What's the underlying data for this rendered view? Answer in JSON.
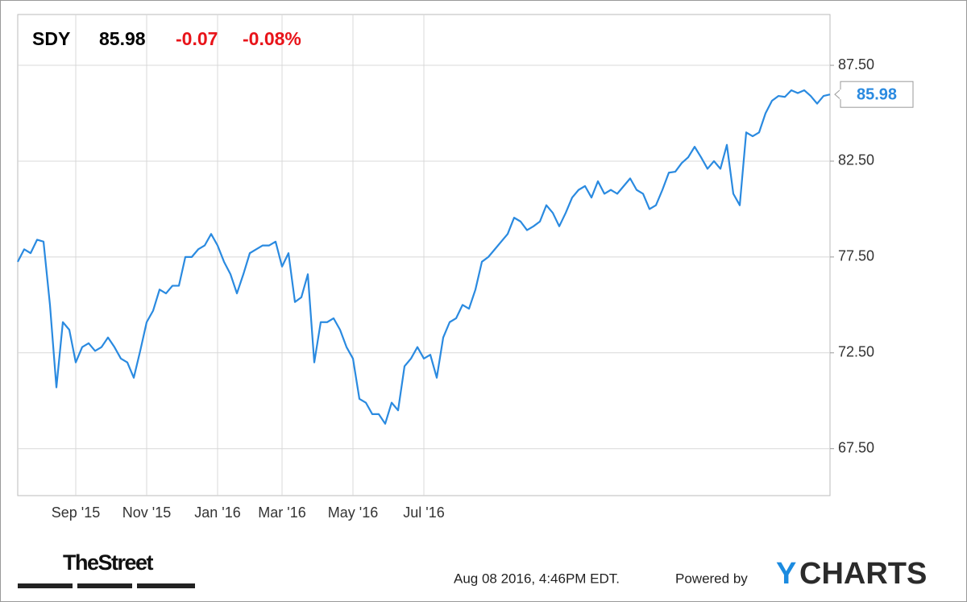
{
  "header": {
    "ticker": "SDY",
    "price": 85.98,
    "change": -0.07,
    "change_pct": "-0.08%"
  },
  "chart_data": {
    "type": "line",
    "color": "#2a8ae0",
    "categories": [
      null,
      null,
      null,
      null,
      null,
      null,
      null,
      null,
      null,
      "Sep '15",
      null,
      null,
      null,
      null,
      null,
      null,
      null,
      null,
      null,
      null,
      "Nov '15",
      null,
      null,
      null,
      null,
      null,
      null,
      null,
      null,
      null,
      null,
      "Jan '16",
      null,
      null,
      null,
      null,
      null,
      null,
      null,
      null,
      null,
      "Mar '16",
      null,
      null,
      null,
      null,
      null,
      null,
      null,
      null,
      null,
      null,
      "May '16",
      null,
      null,
      null,
      null,
      null,
      null,
      null,
      null,
      null,
      null,
      "Jul '16",
      null,
      null,
      null,
      null,
      null,
      null,
      null,
      null,
      null,
      null,
      null,
      null,
      null,
      null,
      null,
      null,
      null,
      null,
      null,
      null,
      null,
      null,
      null,
      null,
      null,
      null,
      null,
      null,
      null,
      null,
      null,
      null,
      null,
      null,
      null,
      null,
      null,
      null,
      null,
      null,
      null,
      null,
      null,
      null,
      null,
      null,
      null,
      null,
      null,
      null,
      null,
      null,
      null,
      null,
      null,
      null,
      null,
      null,
      null,
      null,
      null,
      null,
      null
    ],
    "values": [
      77.25,
      77.9,
      77.7,
      78.4,
      78.3,
      75.0,
      70.7,
      74.1,
      73.7,
      72.0,
      72.8,
      73.0,
      72.6,
      72.8,
      73.3,
      72.8,
      72.2,
      72.0,
      71.2,
      72.6,
      74.1,
      74.7,
      75.8,
      75.6,
      76.0,
      76.0,
      77.5,
      77.5,
      77.9,
      78.1,
      78.7,
      78.1,
      77.25,
      76.6,
      75.6,
      76.6,
      77.7,
      77.9,
      78.1,
      78.1,
      78.3,
      77.0,
      77.7,
      75.15,
      75.4,
      76.6,
      72.0,
      74.1,
      74.1,
      74.3,
      73.7,
      72.8,
      72.2,
      70.1,
      69.9,
      69.3,
      69.3,
      68.8,
      69.9,
      69.5,
      71.8,
      72.2,
      72.8,
      72.2,
      72.4,
      71.2,
      73.3,
      74.1,
      74.3,
      75.0,
      74.8,
      75.8,
      77.25,
      77.5,
      77.9,
      78.3,
      78.7,
      79.55,
      79.35,
      78.9,
      79.1,
      79.35,
      80.2,
      79.8,
      79.1,
      79.8,
      80.6,
      81.0,
      81.2,
      80.6,
      81.45,
      80.8,
      81.0,
      80.8,
      81.2,
      81.6,
      81.0,
      80.8,
      80.0,
      80.2,
      81.0,
      81.9,
      81.95,
      82.4,
      82.7,
      83.25,
      82.7,
      82.1,
      82.5,
      82.1,
      83.35,
      80.8,
      80.2,
      84.0,
      83.8,
      84.0,
      85.0,
      85.65,
      85.9,
      85.85,
      86.2,
      86.05,
      86.2,
      85.9,
      85.5,
      85.9,
      85.98
    ],
    "ylim": [
      65.05,
      90.15
    ],
    "yticks": [
      {
        "value": 67.5,
        "label": "67.50"
      },
      {
        "value": 72.5,
        "label": "72.50"
      },
      {
        "value": 77.5,
        "label": "77.50"
      },
      {
        "value": 82.5,
        "label": "82.50"
      },
      {
        "value": 87.5,
        "label": "87.50"
      }
    ],
    "grid": true
  },
  "footer": {
    "brand": "TheStreet",
    "timestamp": "Aug 08 2016, 4:46PM EDT.",
    "powered": "Powered by",
    "logo": [
      "Y",
      "CHARTS"
    ]
  }
}
